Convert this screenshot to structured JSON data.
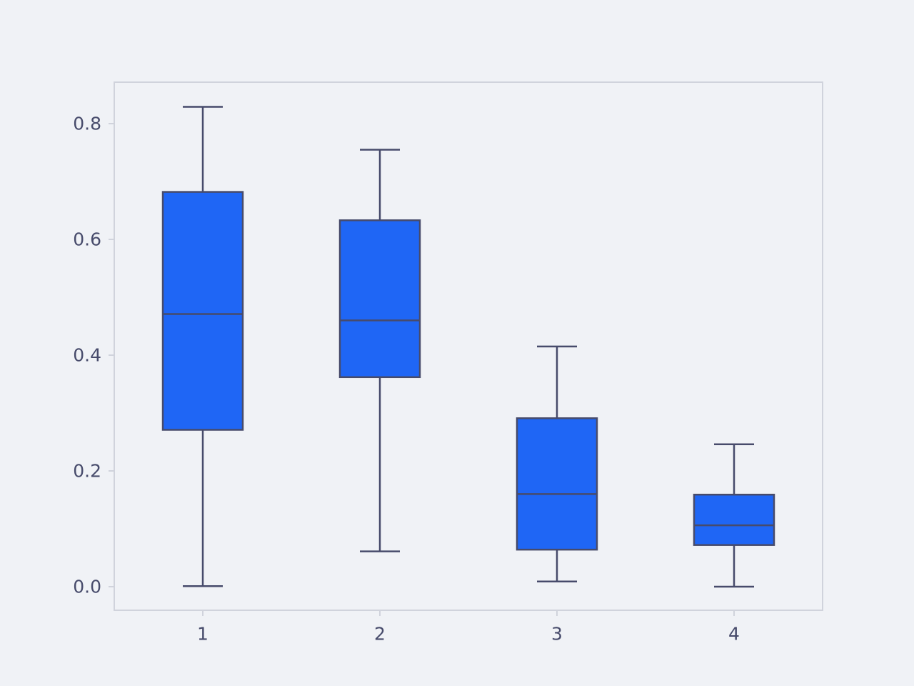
{
  "chart_data": {
    "type": "box",
    "title": "",
    "xlabel": "",
    "ylabel": "",
    "categories": [
      "1",
      "2",
      "3",
      "4"
    ],
    "boxes": [
      {
        "category": "1",
        "whisker_low": 0.001,
        "q1": 0.271,
        "median": 0.471,
        "q3": 0.682,
        "whisker_high": 0.829
      },
      {
        "category": "2",
        "whisker_low": 0.061,
        "q1": 0.362,
        "median": 0.46,
        "q3": 0.633,
        "whisker_high": 0.755
      },
      {
        "category": "3",
        "whisker_low": 0.009,
        "q1": 0.064,
        "median": 0.16,
        "q3": 0.291,
        "whisker_high": 0.415
      },
      {
        "category": "4",
        "whisker_low": 0.0,
        "q1": 0.072,
        "median": 0.106,
        "q3": 0.159,
        "whisker_high": 0.246
      }
    ],
    "y_ticks": [
      0.0,
      0.2,
      0.4,
      0.6,
      0.8
    ],
    "y_tick_labels": [
      "0.0",
      "0.2",
      "0.4",
      "0.6",
      "0.8"
    ],
    "ylim": [
      -0.04,
      0.872
    ],
    "grid": false,
    "legend": "none",
    "colors": {
      "box_fill": "#1f66f5",
      "box_line": "#474b6b",
      "axis_frame": "#d0d3dc",
      "background": "#f0f2f6",
      "tick_text": "#474b6b"
    }
  }
}
